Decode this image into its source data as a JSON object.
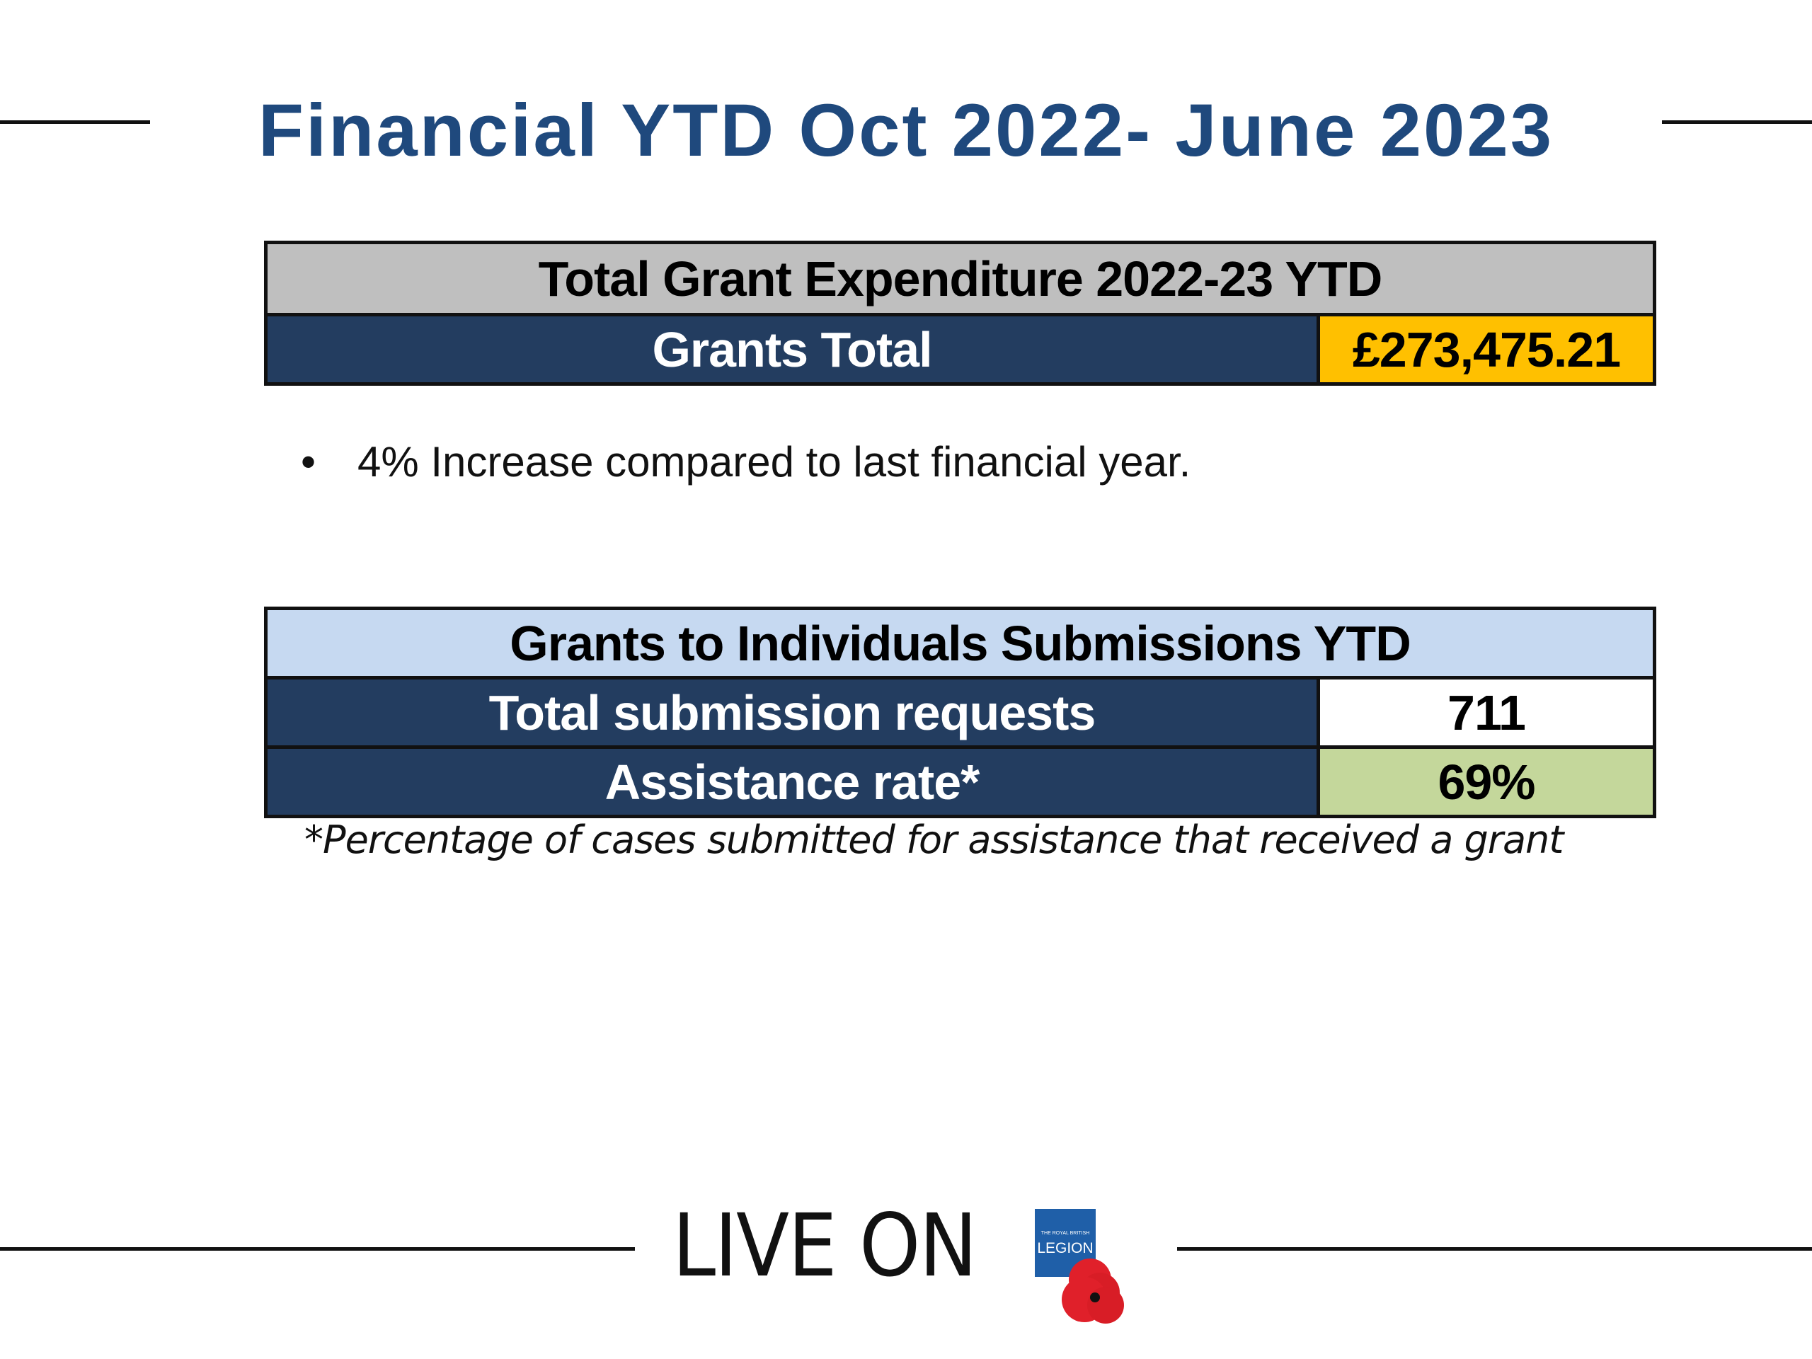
{
  "title": "Financial YTD Oct 2022- June 2023",
  "expenditure_table": {
    "header": "Total Grant Expenditure 2022-23 YTD",
    "rows": [
      {
        "label": "Grants Total",
        "value": "£273,475.21"
      }
    ]
  },
  "bullets": [
    "4% Increase compared to last financial year."
  ],
  "submissions_table": {
    "header": "Grants to Individuals Submissions YTD",
    "rows": [
      {
        "label": "Total submission requests",
        "value": "711"
      },
      {
        "label": "Assistance rate*",
        "value": "69%"
      }
    ]
  },
  "footnote": "*Percentage of cases submitted for assistance that received a grant",
  "footer": {
    "tagline": "LIVE ON",
    "logo_text": "THE ROYAL BRITISH LEGION",
    "logo_icon": "poppy-icon"
  },
  "colors": {
    "title": "#1f497d",
    "label_fill": "#233d60",
    "expenditure_header_fill": "#bfbfbf",
    "grants_total_fill": "#ffc000",
    "submissions_header_fill": "#c6d9f1",
    "submission_requests_fill": "#ffffff",
    "assistance_rate_fill": "#c4d79b",
    "logo_blue": "#1f5fa8",
    "poppy_red": "#e0202a"
  }
}
